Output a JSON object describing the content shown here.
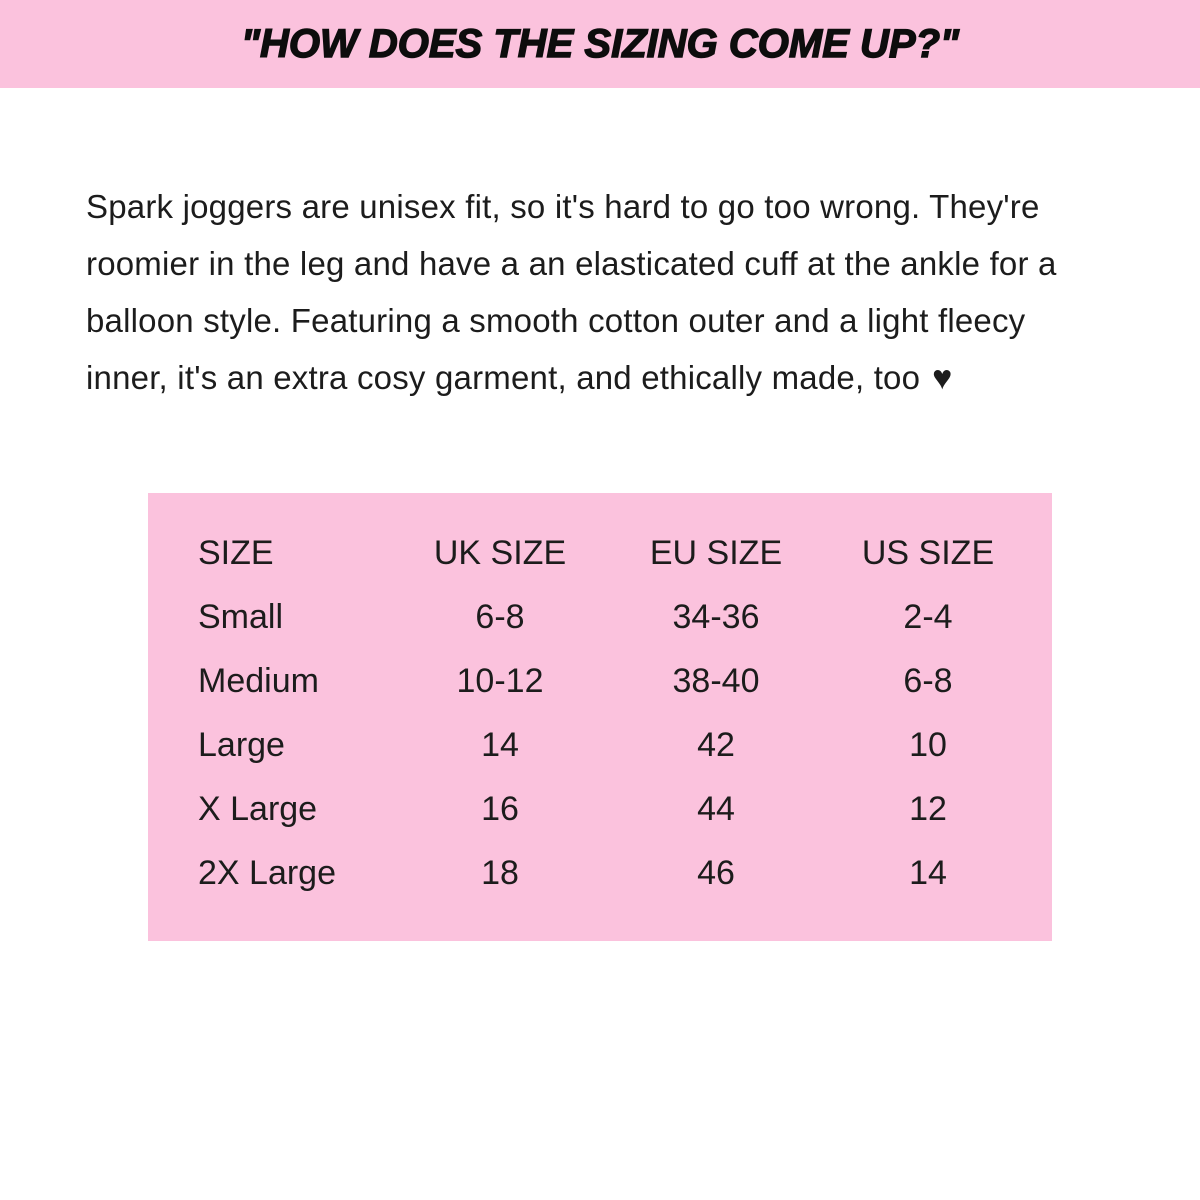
{
  "banner": {
    "title": "\"HOW DOES THE SIZING COME UP?\""
  },
  "paragraph": {
    "lines": [
      "Spark joggers are unisex fit, so it's hard to go too wrong. They're",
      "roomier in the leg and have a an elasticated cuff at the ankle for a",
      "balloon style. Featuring a smooth cotton outer and a light fleecy",
      "inner, it's an extra cosy garment, and ethically made, too"
    ],
    "heart": "♥"
  },
  "size_table": {
    "headers": [
      "SIZE",
      "UK SIZE",
      "EU SIZE",
      "US SIZE"
    ],
    "rows": [
      {
        "size": "Small",
        "uk": "6-8",
        "eu": "34-36",
        "us": "2-4"
      },
      {
        "size": "Medium",
        "uk": "10-12",
        "eu": "38-40",
        "us": "6-8"
      },
      {
        "size": "Large",
        "uk": "14",
        "eu": "42",
        "us": "10"
      },
      {
        "size": "X Large",
        "uk": "16",
        "eu": "44",
        "us": "12"
      },
      {
        "size": "2X Large",
        "uk": "18",
        "eu": "46",
        "us": "14"
      }
    ]
  },
  "colors": {
    "pink": "#fbc2dd",
    "text": "#1b1b1b"
  }
}
